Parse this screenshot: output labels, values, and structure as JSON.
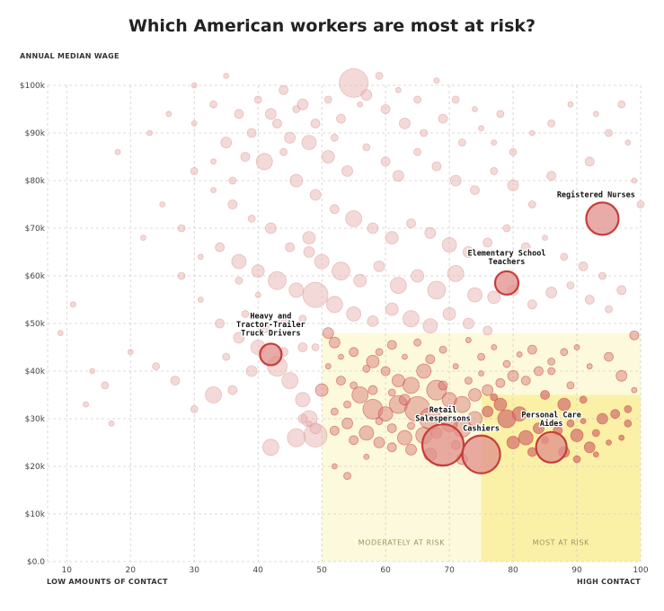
{
  "chart_data": {
    "type": "scatter",
    "title": "Which American workers are most at risk?",
    "ylabel": "ANNUAL MEDIAN WAGE",
    "xlabel_left": "LOW AMOUNTS OF CONTACT",
    "xlabel_right": "HIGH CONTACT",
    "xlim": [
      7,
      100
    ],
    "ylim": [
      0,
      100000
    ],
    "x_ticks": [
      10,
      20,
      30,
      40,
      50,
      60,
      70,
      80,
      90,
      100
    ],
    "y_ticks": [
      0,
      10000,
      20000,
      30000,
      40000,
      50000,
      60000,
      70000,
      80000,
      90000,
      100000
    ],
    "y_tick_labels": [
      "$0.0",
      "$10k",
      "$20k",
      "$30k",
      "$40k",
      "$50k",
      "$60k",
      "$70k",
      "$80k",
      "$90k",
      "$100k"
    ],
    "grid": true,
    "zones": [
      {
        "label": "MODERATELY AT RISK",
        "x": [
          50,
          100
        ],
        "y": [
          0,
          48000
        ],
        "color": "#fdf9dc"
      },
      {
        "label": "MOST AT RISK",
        "x": [
          75,
          100
        ],
        "y": [
          0,
          35000
        ],
        "color": "#fbf1a6"
      }
    ],
    "colors": {
      "faded": "#e8b3b1",
      "faded_stroke": "#d99a98",
      "risk": "#d2726d",
      "highlight": "#c63d3a",
      "highlight_fill": "#e08f8b"
    },
    "highlighted": [
      {
        "name": "Registered Nurses",
        "x": 94,
        "y": 72000,
        "size": 18
      },
      {
        "name": "Elementary School Teachers",
        "x": 79,
        "y": 58500,
        "size": 13
      },
      {
        "name": "Heavy and Tractor-Trailer Truck Drivers",
        "x": 42,
        "y": 43500,
        "size": 12
      },
      {
        "name": "Retail Salespersons",
        "x": 69,
        "y": 24500,
        "size": 23
      },
      {
        "name": "Cashiers",
        "x": 75,
        "y": 22500,
        "size": 21
      },
      {
        "name": "Personal Care Aides",
        "x": 86,
        "y": 24000,
        "size": 17
      }
    ],
    "annotations": [
      {
        "lines": [
          "Registered Nurses"
        ],
        "x": 93,
        "y": 76500
      },
      {
        "lines": [
          "Elementary School",
          "Teachers"
        ],
        "x": 79,
        "y": 62500
      },
      {
        "lines": [
          "Heavy and",
          "Tractor-Trailer",
          "Truck Drivers"
        ],
        "x": 42,
        "y": 47500
      },
      {
        "lines": [
          "Retail",
          "Salespersons"
        ],
        "x": 69,
        "y": 29500
      },
      {
        "lines": [
          "Cashiers"
        ],
        "x": 75,
        "y": 27500
      },
      {
        "lines": [
          "Personal Care",
          "Aides"
        ],
        "x": 86,
        "y": 28500
      }
    ],
    "points": [
      [
        48,
        65000,
        6
      ],
      [
        47,
        51000,
        4
      ],
      [
        49,
        45000,
        4
      ],
      [
        48,
        29000,
        3
      ],
      [
        52,
        20000,
        3
      ],
      [
        54,
        18000,
        4
      ],
      [
        57,
        22000,
        3
      ],
      [
        47,
        30000,
        5
      ],
      [
        49,
        28000,
        6
      ],
      [
        61,
        24000,
        5
      ],
      [
        64,
        23500,
        6
      ],
      [
        67,
        22500,
        7
      ],
      [
        72,
        21500,
        6
      ],
      [
        80,
        25000,
        7
      ],
      [
        82,
        26000,
        8
      ],
      [
        88,
        23000,
        6
      ],
      [
        90,
        26500,
        7
      ],
      [
        92,
        24000,
        6
      ],
      [
        84,
        28000,
        6
      ],
      [
        81,
        31000,
        8
      ],
      [
        79,
        30000,
        10
      ],
      [
        85,
        35000,
        5
      ],
      [
        88,
        33000,
        7
      ],
      [
        91,
        34000,
        4
      ],
      [
        94,
        30000,
        6
      ],
      [
        96,
        31000,
        5
      ],
      [
        98,
        32000,
        4
      ],
      [
        99,
        36000,
        3
      ],
      [
        98,
        29000,
        4
      ],
      [
        86,
        40000,
        4
      ],
      [
        89,
        37000,
        4
      ],
      [
        92,
        41000,
        3
      ],
      [
        95,
        43000,
        5
      ],
      [
        97,
        39000,
        6
      ],
      [
        99,
        47500,
        5
      ],
      [
        52,
        46000,
        6
      ],
      [
        55,
        44000,
        5
      ],
      [
        58,
        42000,
        7
      ],
      [
        60,
        40000,
        5
      ],
      [
        62,
        38000,
        7
      ],
      [
        64,
        37000,
        9
      ],
      [
        66,
        40000,
        8
      ],
      [
        68,
        36000,
        11
      ],
      [
        70,
        34000,
        8
      ],
      [
        72,
        33000,
        9
      ],
      [
        74,
        35000,
        7
      ],
      [
        76,
        36000,
        6
      ],
      [
        78,
        37500,
        5
      ],
      [
        80,
        39000,
        6
      ],
      [
        82,
        38000,
        5
      ],
      [
        84,
        40000,
        5
      ],
      [
        86,
        42000,
        4
      ],
      [
        88,
        44000,
        4
      ],
      [
        90,
        45000,
        3
      ],
      [
        53,
        38000,
        5
      ],
      [
        56,
        35000,
        9
      ],
      [
        58,
        32000,
        11
      ],
      [
        60,
        31000,
        8
      ],
      [
        62,
        33000,
        10
      ],
      [
        65,
        32000,
        14
      ],
      [
        67,
        30000,
        12
      ],
      [
        70,
        29000,
        9
      ],
      [
        72,
        28000,
        10
      ],
      [
        74,
        30000,
        8
      ],
      [
        76,
        31500,
        6
      ],
      [
        78,
        33000,
        7
      ],
      [
        54,
        29000,
        6
      ],
      [
        57,
        27000,
        8
      ],
      [
        59,
        25000,
        6
      ],
      [
        63,
        26000,
        8
      ],
      [
        66,
        26500,
        9
      ],
      [
        52,
        27500,
        5
      ],
      [
        54,
        33000,
        4
      ],
      [
        51,
        41000,
        3
      ],
      [
        53,
        43000,
        3
      ],
      [
        57,
        40500,
        4
      ],
      [
        59,
        44000,
        4
      ],
      [
        61,
        45500,
        5
      ],
      [
        63,
        43000,
        3
      ],
      [
        65,
        46000,
        4
      ],
      [
        67,
        42500,
        5
      ],
      [
        69,
        44500,
        4
      ],
      [
        71,
        41000,
        3
      ],
      [
        73,
        46500,
        3
      ],
      [
        75,
        43000,
        4
      ],
      [
        77,
        45000,
        3
      ],
      [
        79,
        41500,
        4
      ],
      [
        81,
        43500,
        3
      ],
      [
        83,
        44500,
        5
      ],
      [
        55,
        37000,
        4
      ],
      [
        58,
        36000,
        5
      ],
      [
        61,
        35500,
        4
      ],
      [
        63,
        34000,
        6
      ],
      [
        69,
        37000,
        5
      ],
      [
        73,
        38000,
        4
      ],
      [
        75,
        39500,
        3
      ],
      [
        77,
        34500,
        4
      ],
      [
        52,
        31500,
        4
      ],
      [
        55,
        25500,
        5
      ],
      [
        59,
        29500,
        4
      ],
      [
        61,
        28000,
        5
      ],
      [
        64,
        28500,
        4
      ],
      [
        68,
        27000,
        6
      ],
      [
        71,
        24500,
        5
      ],
      [
        83,
        23000,
        5
      ],
      [
        85,
        25500,
        4
      ],
      [
        87,
        27500,
        5
      ],
      [
        89,
        29000,
        4
      ],
      [
        91,
        29500,
        3
      ],
      [
        93,
        27000,
        4
      ],
      [
        90,
        21500,
        4
      ],
      [
        93,
        22500,
        3
      ],
      [
        95,
        25000,
        3
      ],
      [
        97,
        26000,
        3
      ],
      [
        55,
        100500,
        16
      ],
      [
        51,
        97000,
        4
      ],
      [
        53,
        93000,
        5
      ],
      [
        57,
        98000,
        6
      ],
      [
        60,
        95000,
        5
      ],
      [
        63,
        92000,
        6
      ],
      [
        66,
        90000,
        4
      ],
      [
        69,
        93000,
        5
      ],
      [
        72,
        88000,
        4
      ],
      [
        75,
        91000,
        3
      ],
      [
        78,
        94000,
        4
      ],
      [
        47,
        96000,
        6
      ],
      [
        44,
        99000,
        5
      ],
      [
        40,
        97000,
        4
      ],
      [
        37,
        94000,
        5
      ],
      [
        33,
        96000,
        4
      ],
      [
        30,
        92000,
        3
      ],
      [
        43,
        92000,
        5
      ],
      [
        45,
        89000,
        6
      ],
      [
        48,
        88000,
        8
      ],
      [
        51,
        85000,
        7
      ],
      [
        54,
        82000,
        6
      ],
      [
        57,
        87000,
        4
      ],
      [
        60,
        84000,
        5
      ],
      [
        62,
        81000,
        6
      ],
      [
        65,
        86000,
        4
      ],
      [
        68,
        83000,
        5
      ],
      [
        71,
        80000,
        6
      ],
      [
        74,
        78000,
        5
      ],
      [
        77,
        82000,
        4
      ],
      [
        80,
        79000,
        6
      ],
      [
        83,
        75000,
        4
      ],
      [
        86,
        81000,
        5
      ],
      [
        89,
        77000,
        4
      ],
      [
        92,
        84000,
        5
      ],
      [
        95,
        90000,
        4
      ],
      [
        98,
        88000,
        3
      ],
      [
        100,
        75000,
        4
      ],
      [
        99,
        80000,
        3
      ],
      [
        35,
        88000,
        6
      ],
      [
        38,
        85000,
        5
      ],
      [
        41,
        84000,
        9
      ],
      [
        44,
        86000,
        4
      ],
      [
        46,
        80000,
        7
      ],
      [
        49,
        77000,
        6
      ],
      [
        52,
        74000,
        5
      ],
      [
        55,
        72000,
        9
      ],
      [
        58,
        70000,
        6
      ],
      [
        61,
        68000,
        7
      ],
      [
        64,
        71000,
        5
      ],
      [
        67,
        69000,
        6
      ],
      [
        70,
        66500,
        8
      ],
      [
        73,
        65000,
        6
      ],
      [
        76,
        67000,
        5
      ],
      [
        79,
        70000,
        4
      ],
      [
        82,
        66000,
        5
      ],
      [
        85,
        68000,
        3
      ],
      [
        88,
        64000,
        4
      ],
      [
        91,
        62000,
        5
      ],
      [
        94,
        60000,
        4
      ],
      [
        97,
        57000,
        5
      ],
      [
        30,
        82000,
        4
      ],
      [
        33,
        78000,
        3
      ],
      [
        36,
        75000,
        5
      ],
      [
        39,
        72000,
        4
      ],
      [
        42,
        70000,
        6
      ],
      [
        45,
        66000,
        5
      ],
      [
        48,
        68000,
        7
      ],
      [
        50,
        63000,
        8
      ],
      [
        53,
        61000,
        10
      ],
      [
        56,
        59000,
        7
      ],
      [
        59,
        62000,
        6
      ],
      [
        62,
        58000,
        9
      ],
      [
        65,
        60000,
        7
      ],
      [
        68,
        57000,
        10
      ],
      [
        71,
        60500,
        9
      ],
      [
        74,
        56000,
        8
      ],
      [
        77,
        55500,
        7
      ],
      [
        80,
        57000,
        6
      ],
      [
        83,
        54000,
        5
      ],
      [
        86,
        56500,
        6
      ],
      [
        89,
        58000,
        4
      ],
      [
        92,
        55000,
        5
      ],
      [
        95,
        53000,
        4
      ],
      [
        34,
        66000,
        5
      ],
      [
        37,
        63000,
        8
      ],
      [
        40,
        61000,
        7
      ],
      [
        43,
        59000,
        10
      ],
      [
        46,
        57000,
        8
      ],
      [
        49,
        56000,
        14
      ],
      [
        52,
        54000,
        9
      ],
      [
        55,
        52000,
        8
      ],
      [
        58,
        50500,
        6
      ],
      [
        61,
        53000,
        7
      ],
      [
        64,
        51000,
        9
      ],
      [
        67,
        49500,
        8
      ],
      [
        70,
        52000,
        7
      ],
      [
        73,
        50000,
        6
      ],
      [
        76,
        48500,
        5
      ],
      [
        28,
        60000,
        4
      ],
      [
        31,
        55000,
        3
      ],
      [
        34,
        50000,
        5
      ],
      [
        37,
        47000,
        6
      ],
      [
        40,
        45000,
        8
      ],
      [
        43,
        41000,
        11
      ],
      [
        45,
        38000,
        9
      ],
      [
        47,
        34000,
        8
      ],
      [
        48,
        30000,
        9
      ],
      [
        46,
        26000,
        10
      ],
      [
        42,
        24000,
        9
      ],
      [
        49,
        26500,
        13
      ],
      [
        50,
        36000,
        7
      ],
      [
        51,
        48000,
        6
      ],
      [
        44,
        44000,
        5
      ],
      [
        39,
        40000,
        6
      ],
      [
        36,
        36000,
        5
      ],
      [
        33,
        35000,
        9
      ],
      [
        30,
        32000,
        4
      ],
      [
        27,
        38000,
        5
      ],
      [
        24,
        41000,
        4
      ],
      [
        20,
        44000,
        3
      ],
      [
        16,
        37000,
        4
      ],
      [
        14,
        40000,
        3
      ],
      [
        35,
        43000,
        4
      ],
      [
        38,
        52000,
        4
      ],
      [
        41,
        49000,
        5
      ],
      [
        44,
        51000,
        6
      ],
      [
        47,
        45000,
        5
      ],
      [
        40,
        56000,
        3
      ],
      [
        37,
        59000,
        4
      ],
      [
        31,
        64000,
        3
      ],
      [
        28,
        70000,
        4
      ],
      [
        25,
        75000,
        3
      ],
      [
        22,
        68000,
        3
      ],
      [
        36,
        80000,
        4
      ],
      [
        33,
        84000,
        3
      ],
      [
        39,
        90000,
        5
      ],
      [
        42,
        94000,
        6
      ],
      [
        46,
        95000,
        4
      ],
      [
        49,
        92000,
        5
      ],
      [
        52,
        89000,
        4
      ],
      [
        56,
        96000,
        3
      ],
      [
        59,
        102000,
        4
      ],
      [
        62,
        99000,
        3
      ],
      [
        65,
        97000,
        4
      ],
      [
        68,
        101000,
        3
      ],
      [
        71,
        97000,
        4
      ],
      [
        74,
        95000,
        3
      ],
      [
        77,
        88000,
        3
      ],
      [
        80,
        86000,
        4
      ],
      [
        83,
        90000,
        3
      ],
      [
        86,
        92000,
        4
      ],
      [
        89,
        96000,
        3
      ],
      [
        93,
        94000,
        3
      ],
      [
        97,
        96000,
        4
      ],
      [
        35,
        102000,
        3
      ],
      [
        30,
        100000,
        3
      ],
      [
        26,
        94000,
        3
      ],
      [
        23,
        90000,
        3
      ],
      [
        18,
        86000,
        3
      ],
      [
        11,
        54000,
        3
      ],
      [
        9,
        48000,
        3
      ],
      [
        13,
        33000,
        3
      ],
      [
        17,
        29000,
        3
      ]
    ]
  }
}
